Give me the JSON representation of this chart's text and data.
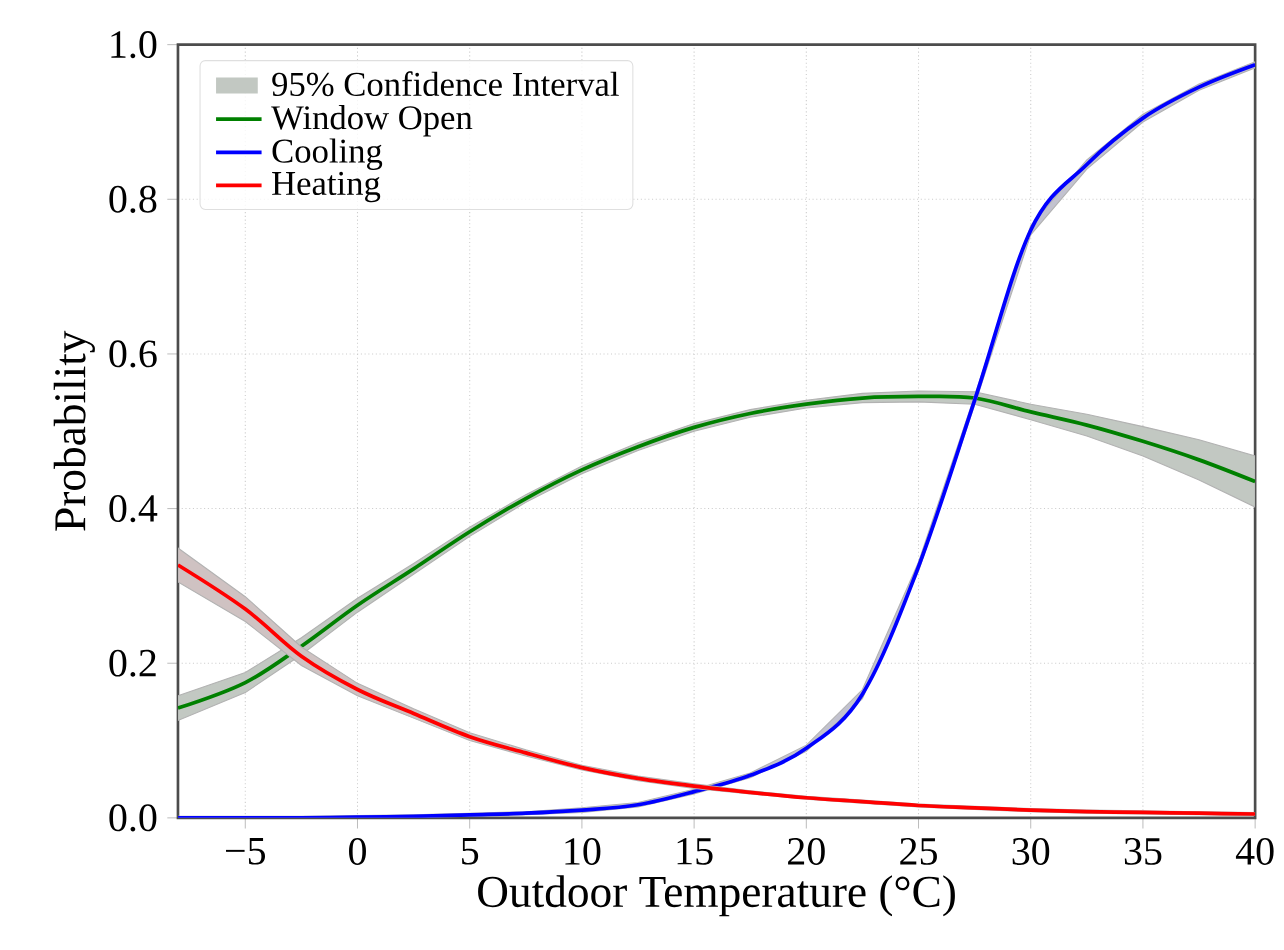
{
  "chart_data": {
    "type": "line",
    "xlabel": "Outdoor Temperature (°C)",
    "ylabel": "Probability",
    "annotations": [
      "95% Confidence Interval"
    ],
    "x": [
      -8,
      -5,
      -2.5,
      0,
      2.5,
      5,
      7.5,
      10,
      12.5,
      15,
      17.5,
      20,
      22.5,
      25,
      27.5,
      30,
      32.5,
      35,
      37.5,
      40
    ],
    "series": [
      {
        "name": "Window Open",
        "color": "#008000",
        "values": [
          0.142,
          0.175,
          0.222,
          0.275,
          0.322,
          0.37,
          0.413,
          0.45,
          0.48,
          0.505,
          0.523,
          0.535,
          0.543,
          0.545,
          0.543,
          0.525,
          0.508,
          0.487,
          0.463,
          0.435
        ],
        "lower": [
          0.126,
          0.162,
          0.211,
          0.266,
          0.315,
          0.364,
          0.408,
          0.445,
          0.475,
          0.5,
          0.518,
          0.53,
          0.537,
          0.538,
          0.535,
          0.515,
          0.494,
          0.468,
          0.437,
          0.402
        ],
        "upper": [
          0.158,
          0.188,
          0.233,
          0.284,
          0.329,
          0.376,
          0.418,
          0.455,
          0.485,
          0.51,
          0.528,
          0.54,
          0.549,
          0.552,
          0.551,
          0.535,
          0.522,
          0.506,
          0.489,
          0.468
        ]
      },
      {
        "name": "Cooling",
        "color": "#0000ff",
        "values": [
          0,
          0,
          0,
          0.001,
          0.002,
          0.004,
          0.006,
          0.01,
          0.017,
          0.034,
          0.055,
          0.09,
          0.16,
          0.325,
          0.54,
          0.76,
          0.845,
          0.905,
          0.945,
          0.974
        ],
        "lower": [
          0,
          0,
          0,
          0,
          0,
          0.002,
          0.004,
          0.007,
          0.014,
          0.031,
          0.052,
          0.086,
          0.154,
          0.319,
          0.534,
          0.754,
          0.839,
          0.9,
          0.941,
          0.97
        ],
        "upper": [
          0.002,
          0.002,
          0.002,
          0.003,
          0.004,
          0.006,
          0.008,
          0.013,
          0.02,
          0.037,
          0.058,
          0.094,
          0.166,
          0.331,
          0.546,
          0.766,
          0.851,
          0.91,
          0.949,
          0.978
        ]
      },
      {
        "name": "Heating",
        "color": "#ff0000",
        "values": [
          0.327,
          0.27,
          0.209,
          0.166,
          0.135,
          0.105,
          0.084,
          0.065,
          0.051,
          0.041,
          0.033,
          0.026,
          0.021,
          0.016,
          0.013,
          0.01,
          0.008,
          0.007,
          0.006,
          0.005
        ],
        "lower": [
          0.305,
          0.254,
          0.197,
          0.158,
          0.129,
          0.1,
          0.08,
          0.062,
          0.048,
          0.038,
          0.031,
          0.024,
          0.019,
          0.014,
          0.011,
          0.008,
          0.006,
          0.005,
          0.004,
          0.003
        ],
        "upper": [
          0.349,
          0.286,
          0.221,
          0.174,
          0.141,
          0.11,
          0.088,
          0.068,
          0.054,
          0.044,
          0.035,
          0.028,
          0.023,
          0.018,
          0.015,
          0.012,
          0.01,
          0.009,
          0.008,
          0.007
        ]
      }
    ],
    "xlim": [
      -8,
      40
    ],
    "ylim": [
      0,
      1
    ],
    "xticks": [
      {
        "value": -5,
        "label": "−5"
      },
      0,
      5,
      10,
      15,
      20,
      25,
      30,
      35,
      40
    ],
    "yticks": [
      {
        "value": 0,
        "label": "0.0"
      },
      {
        "value": 0.2,
        "label": "0.2"
      },
      {
        "value": 0.4,
        "label": "0.4"
      },
      {
        "value": 0.6,
        "label": "0.6"
      },
      {
        "value": 0.8,
        "label": "0.8"
      },
      {
        "value": 1,
        "label": "1.0"
      }
    ],
    "grid": true,
    "legend": "top left",
    "line_style": "solid"
  }
}
